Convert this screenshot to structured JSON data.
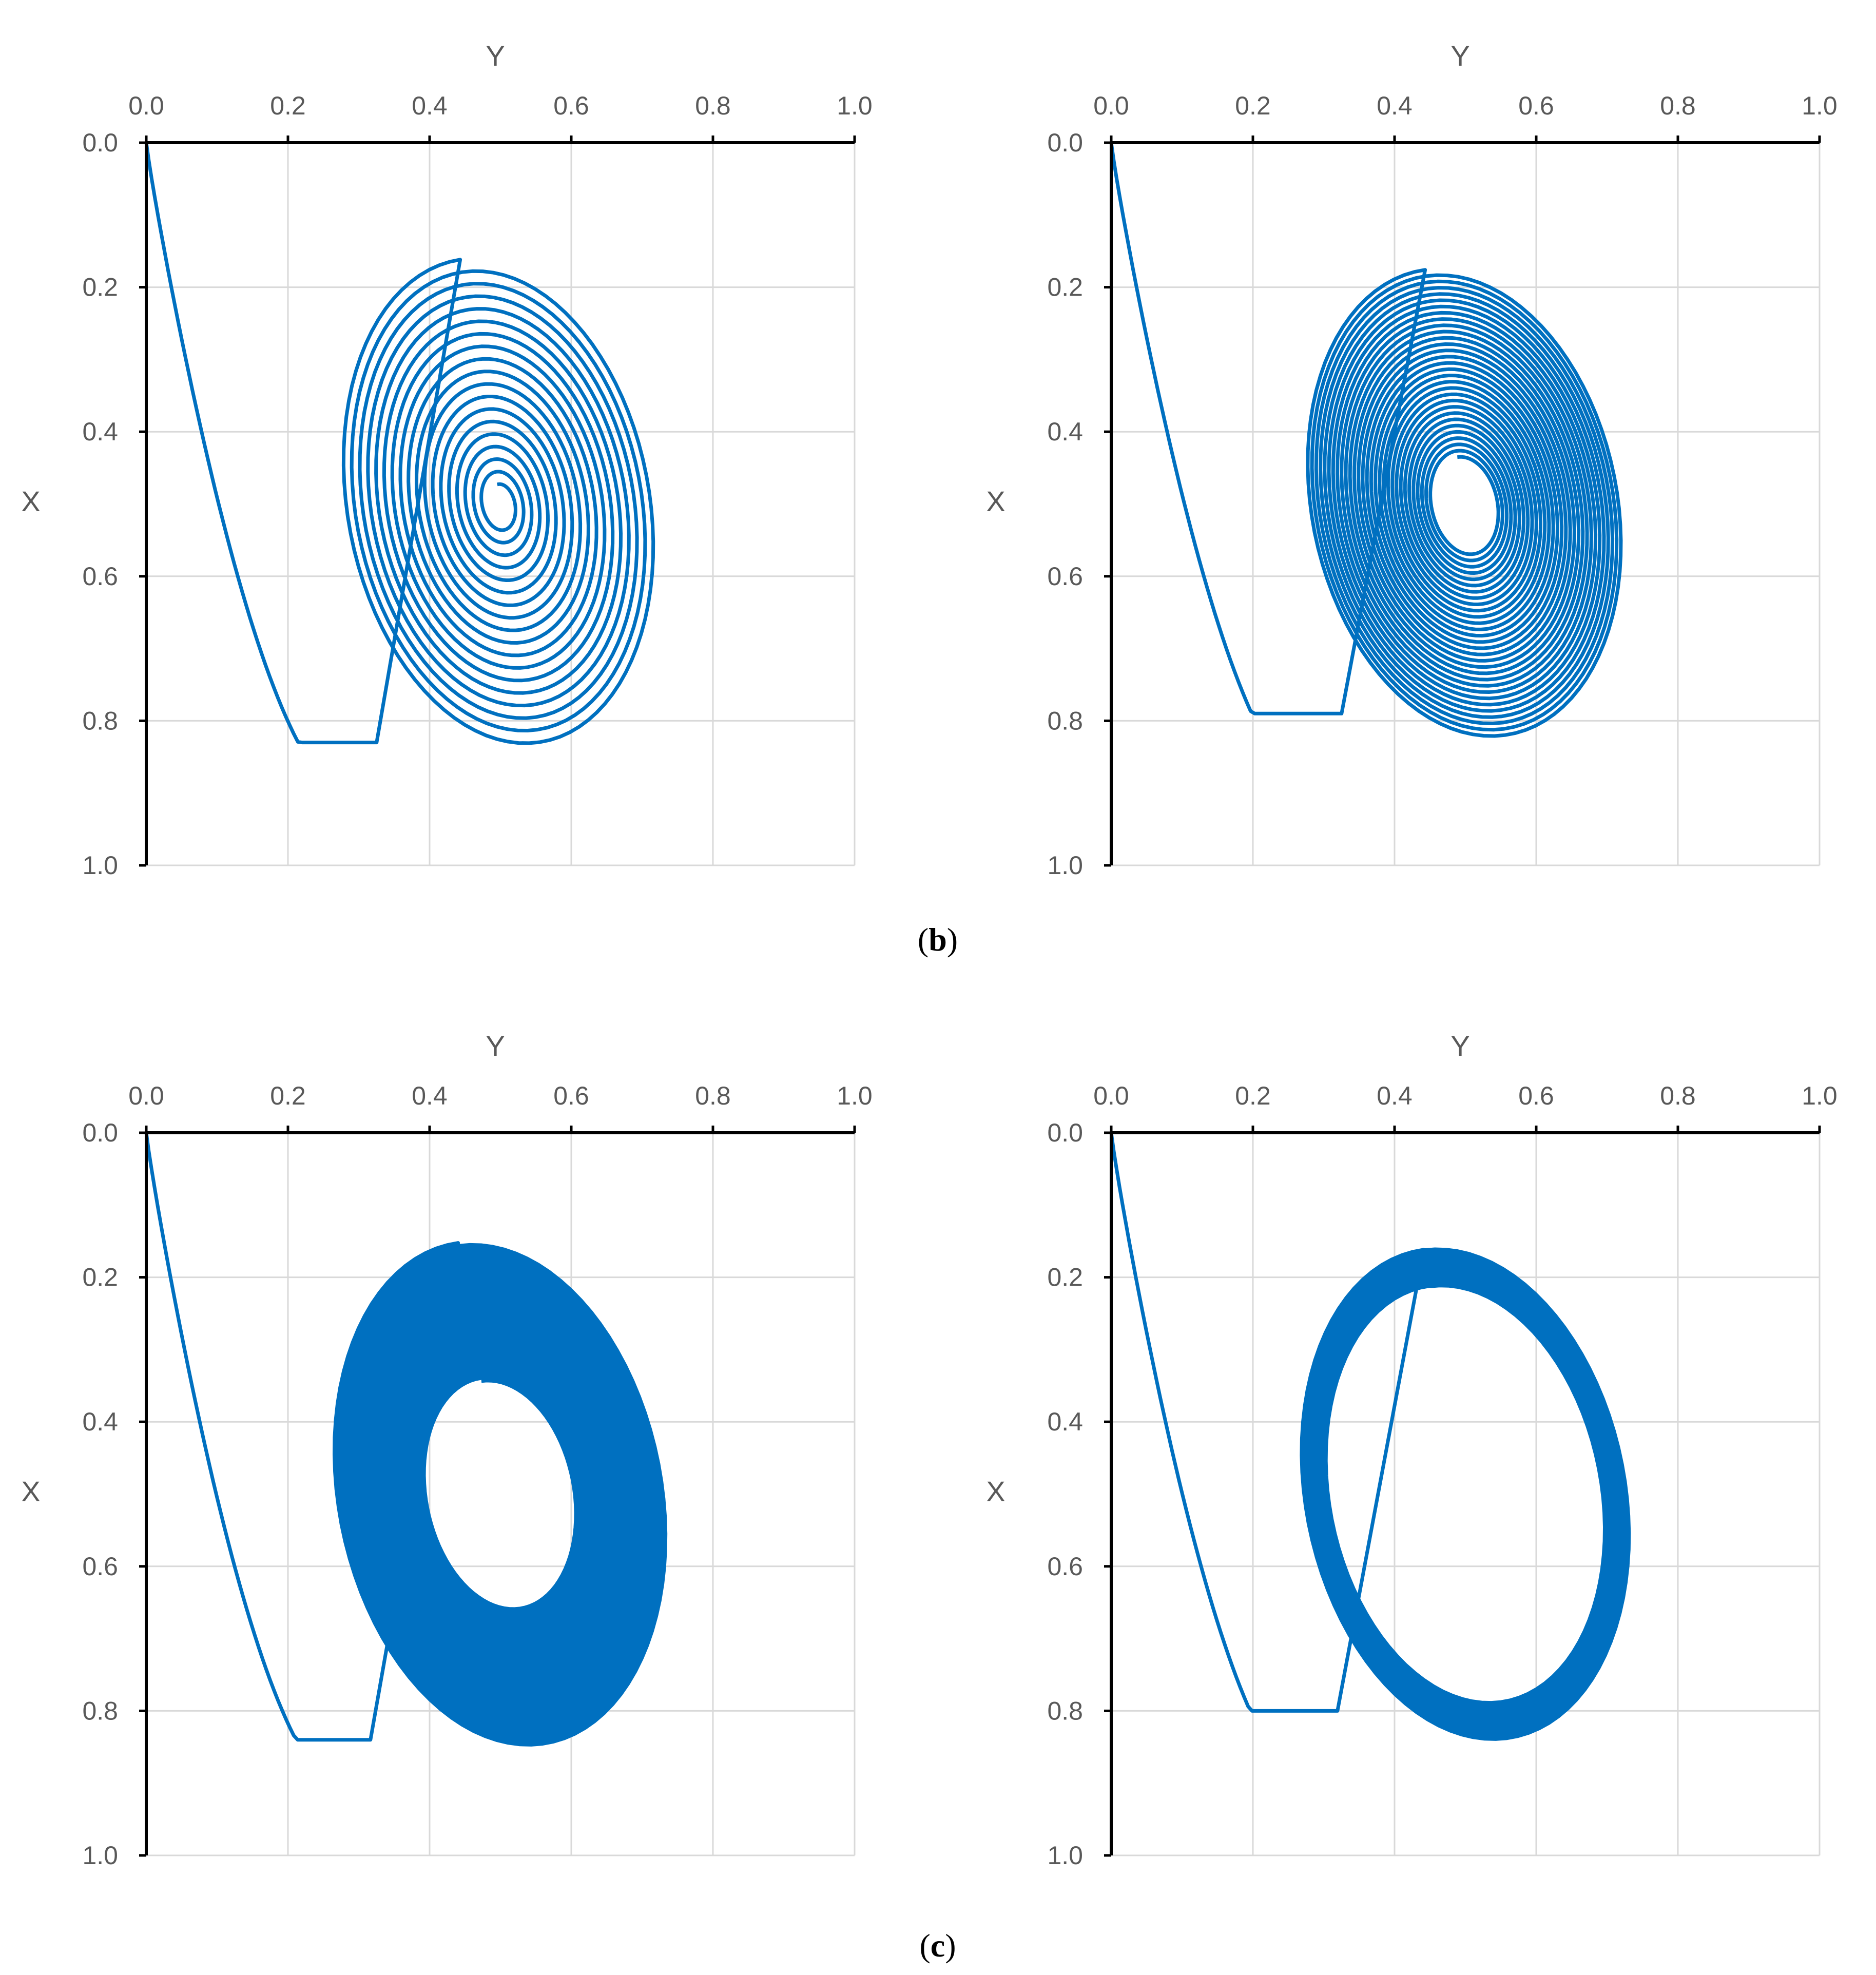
{
  "figure": {
    "captions": [
      "(b)",
      "(c)"
    ],
    "caption_parts": [
      {
        "open": "(",
        "letter": "b",
        "close": ")"
      },
      {
        "open": "(",
        "letter": "c",
        "close": ")"
      }
    ]
  },
  "style": {
    "line_color": "#0070c0",
    "axis_color": "#000000",
    "grid_color": "#d9d9d9",
    "text_color": "#595959"
  },
  "chart_data": [
    {
      "panel": "b-left",
      "type": "line",
      "xlabel": "Y",
      "ylabel": "X",
      "xlim": [
        0.0,
        1.0
      ],
      "ylim": [
        0.0,
        1.0
      ],
      "x_axis_position": "top",
      "y_axis_inverted": true,
      "xticks": [
        "0.0",
        "0.2",
        "0.4",
        "0.6",
        "0.8",
        "1.0"
      ],
      "yticks": [
        "0.0",
        "0.2",
        "0.4",
        "0.6",
        "0.8",
        "1.0"
      ],
      "grid": true,
      "legend": "none",
      "trajectory": {
        "start": {
          "y": 0.0,
          "x": 0.0
        },
        "equilibrium": {
          "y": 0.5,
          "x": 0.5
        },
        "outer_bounds": {
          "y_min": 0.21,
          "y_max": 0.81,
          "x_min": 0.11,
          "x_max": 0.83
        },
        "behaviour": "spiral converging to equilibrium",
        "loops": 18,
        "spacing": "sparse"
      }
    },
    {
      "panel": "b-right",
      "type": "line",
      "xlabel": "Y",
      "ylabel": "X",
      "xlim": [
        0.0,
        1.0
      ],
      "ylim": [
        0.0,
        1.0
      ],
      "x_axis_position": "top",
      "y_axis_inverted": true,
      "xticks": [
        "0.0",
        "0.2",
        "0.4",
        "0.6",
        "0.8",
        "1.0"
      ],
      "yticks": [
        "0.0",
        "0.2",
        "0.4",
        "0.6",
        "0.8",
        "1.0"
      ],
      "grid": true,
      "legend": "none",
      "trajectory": {
        "start": {
          "y": 0.0,
          "x": 0.0
        },
        "equilibrium": {
          "y": 0.5,
          "x": 0.5
        },
        "outer_bounds": {
          "y_min": 0.2,
          "y_max": 0.8,
          "x_min": 0.1,
          "x_max": 0.79
        },
        "behaviour": "spiral converging to equilibrium",
        "loops": 30,
        "spacing": "medium"
      }
    },
    {
      "panel": "c-left",
      "type": "line",
      "xlabel": "Y",
      "ylabel": "X",
      "xlim": [
        0.0,
        1.0
      ],
      "ylim": [
        0.0,
        1.0
      ],
      "x_axis_position": "top",
      "y_axis_inverted": true,
      "xticks": [
        "0.0",
        "0.2",
        "0.4",
        "0.6",
        "0.8",
        "1.0"
      ],
      "yticks": [
        "0.0",
        "0.2",
        "0.4",
        "0.6",
        "0.8",
        "1.0"
      ],
      "grid": true,
      "legend": "none",
      "trajectory": {
        "start": {
          "y": 0.0,
          "x": 0.0
        },
        "equilibrium": {
          "y": 0.5,
          "x": 0.5
        },
        "outer_bounds": {
          "y_min": 0.19,
          "y_max": 0.82,
          "x_min": 0.1,
          "x_max": 0.84
        },
        "behaviour": "slowly converging spiral, dense band",
        "loops": 48,
        "spacing": "dense"
      }
    },
    {
      "panel": "c-right",
      "type": "line",
      "xlabel": "Y",
      "ylabel": "X",
      "xlim": [
        0.0,
        1.0
      ],
      "ylim": [
        0.0,
        1.0
      ],
      "x_axis_position": "top",
      "y_axis_inverted": true,
      "xticks": [
        "0.0",
        "0.2",
        "0.4",
        "0.6",
        "0.8",
        "1.0"
      ],
      "yticks": [
        "0.0",
        "0.2",
        "0.4",
        "0.6",
        "0.8",
        "1.0"
      ],
      "grid": true,
      "legend": "none",
      "trajectory": {
        "start": {
          "y": 0.0,
          "x": 0.0
        },
        "equilibrium": {
          "y": 0.5,
          "x": 0.5
        },
        "outer_bounds": {
          "y_min": 0.18,
          "y_max": 0.8,
          "x_min": 0.08,
          "x_max": 0.8
        },
        "behaviour": "near-closed orbit filling elliptical band",
        "loops": 80,
        "spacing": "very dense"
      }
    }
  ]
}
